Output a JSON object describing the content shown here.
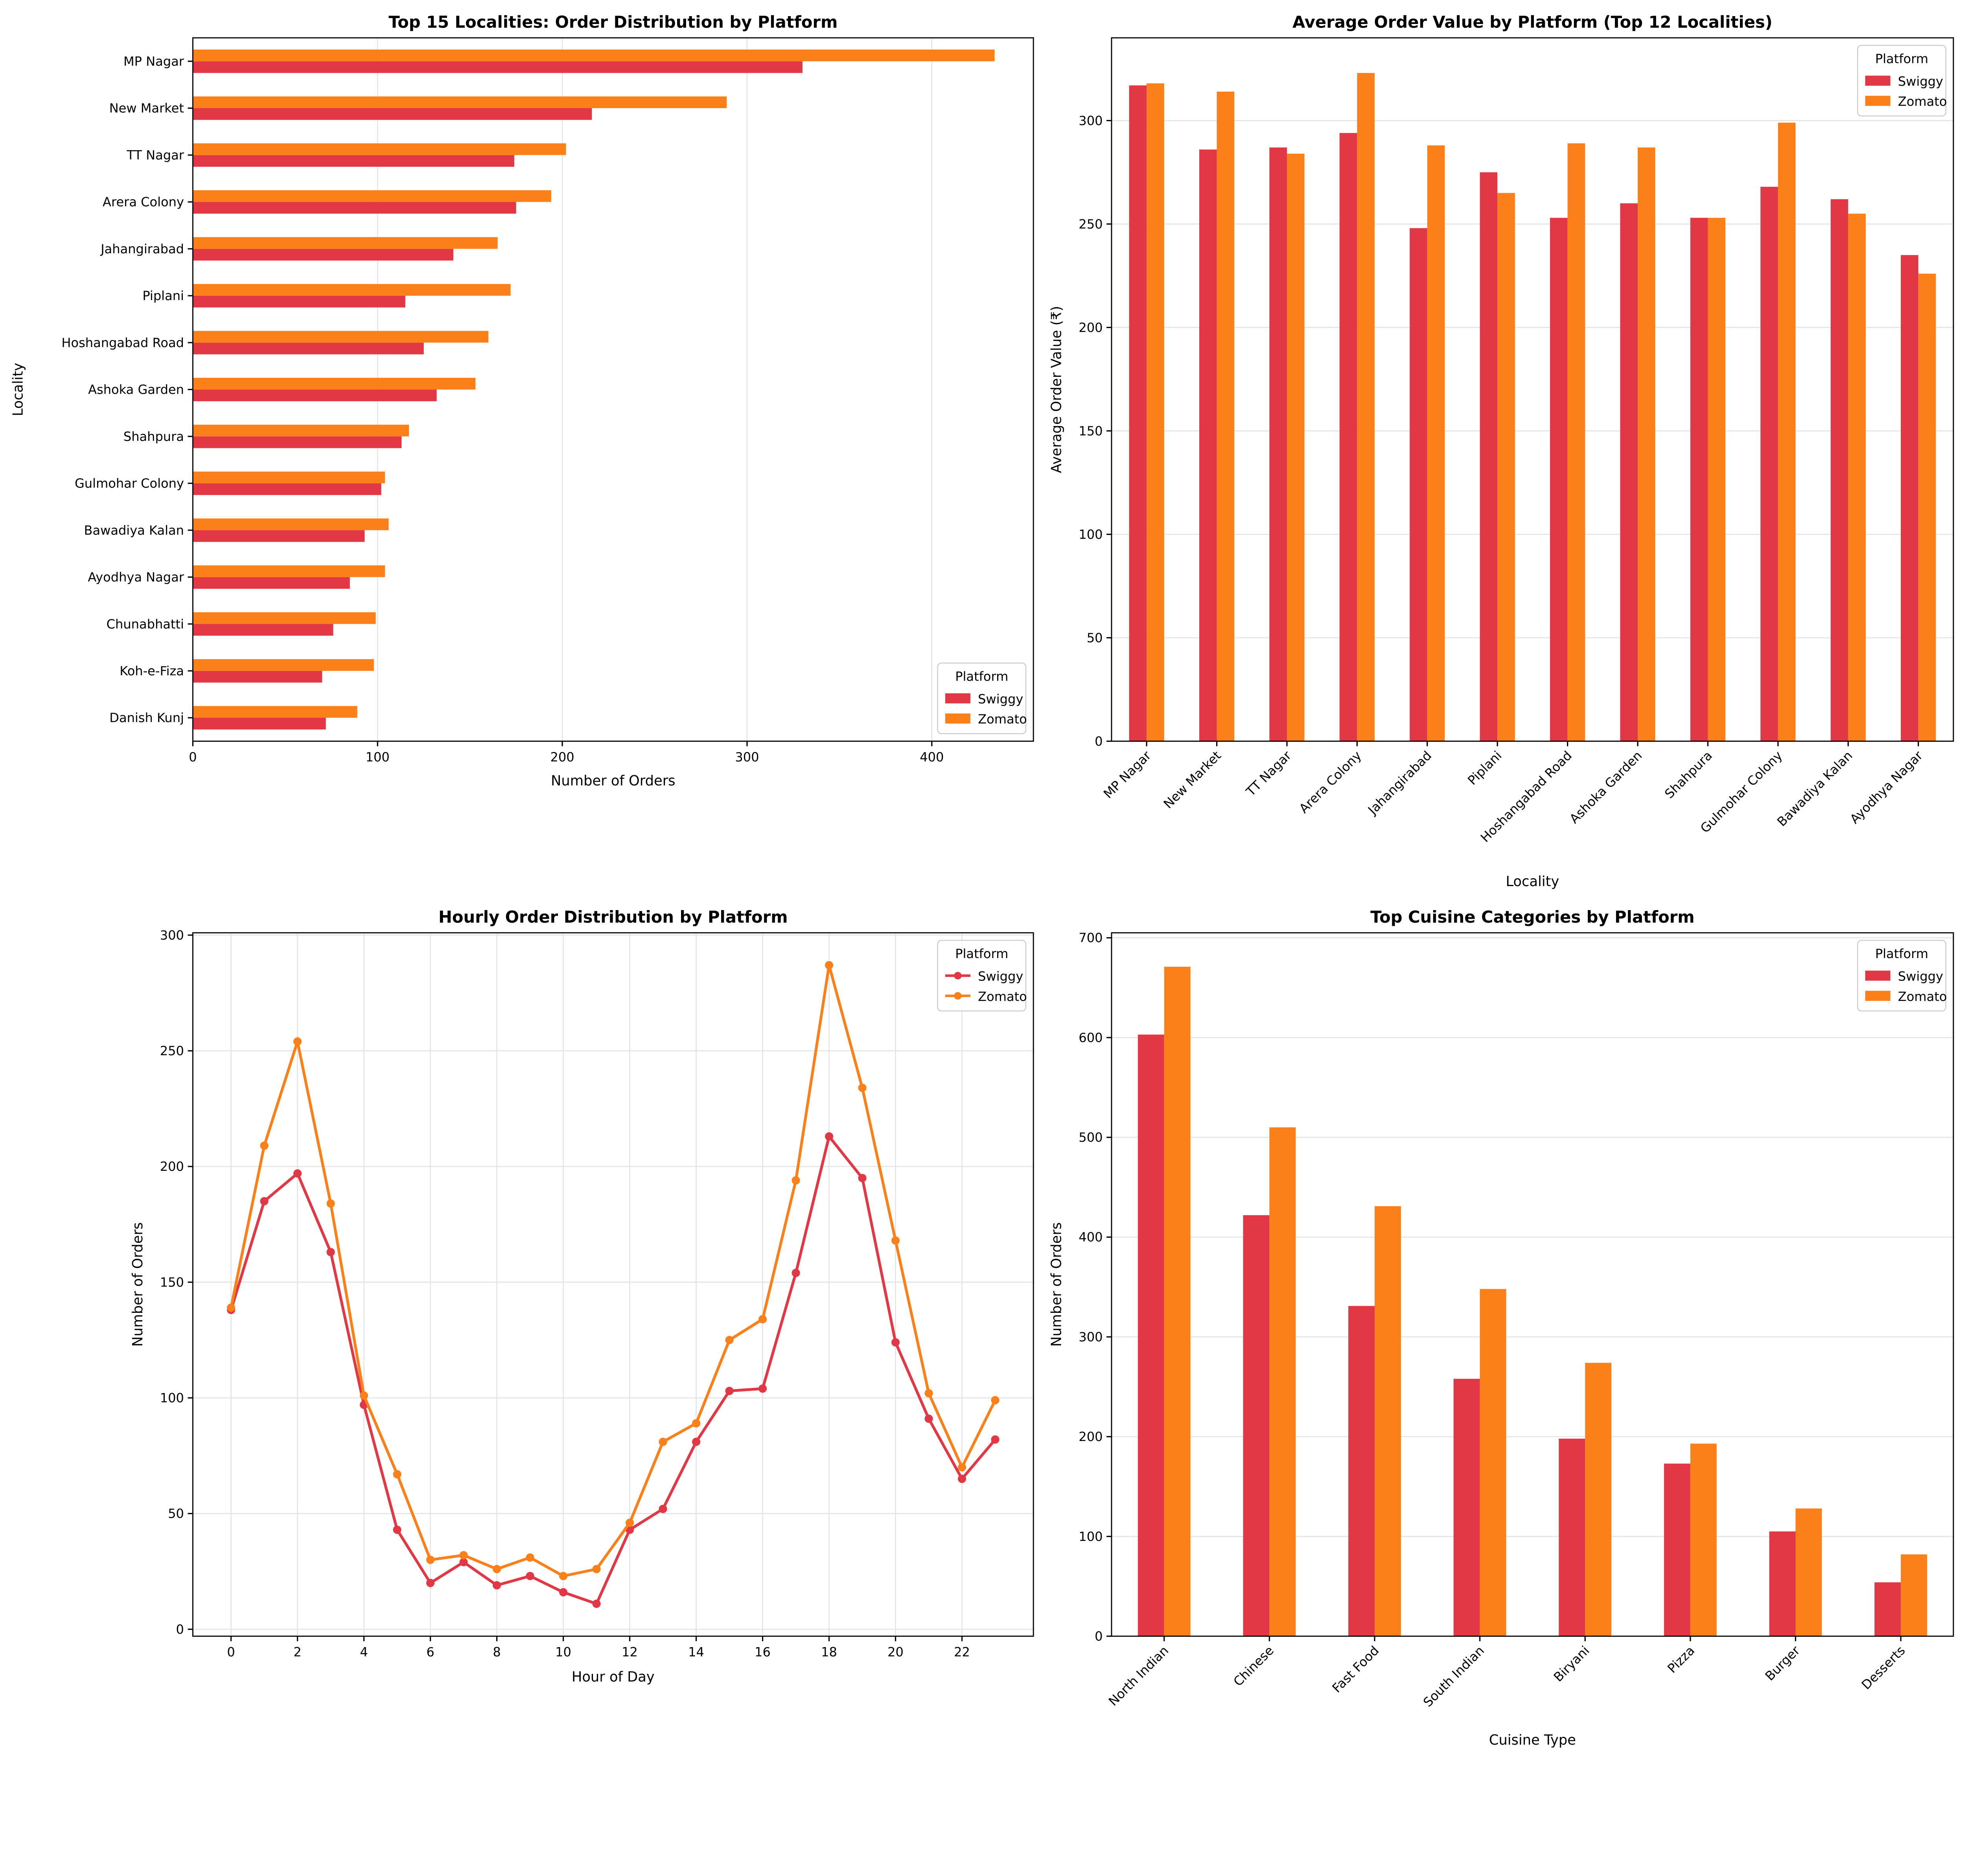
{
  "colors": {
    "Swiggy": "#e23744",
    "Zomato": "#fc8019"
  },
  "chart_data": [
    {
      "type": "bar",
      "orientation": "horizontal",
      "title": "Top 15 Localities: Order Distribution by Platform",
      "xlabel": "Number of Orders",
      "ylabel": "Locality",
      "legend_title": "Platform",
      "legend_placement": "lower-right",
      "grid": true,
      "xlim": [
        0,
        455
      ],
      "xticks": [
        0,
        100,
        200,
        300,
        400
      ],
      "categories": [
        "MP Nagar",
        "New Market",
        "TT Nagar",
        "Arera Colony",
        "Jahangirabad",
        "Piplani",
        "Hoshangabad Road",
        "Ashoka Garden",
        "Shahpura",
        "Gulmohar Colony",
        "Bawadiya Kalan",
        "Ayodhya Nagar",
        "Chunabhatti",
        "Koh-e-Fiza",
        "Danish Kunj"
      ],
      "series": [
        {
          "name": "Swiggy",
          "values": [
            330,
            216,
            174,
            175,
            141,
            115,
            125,
            132,
            113,
            102,
            93,
            85,
            76,
            70,
            72
          ]
        },
        {
          "name": "Zomato",
          "values": [
            434,
            289,
            202,
            194,
            165,
            172,
            160,
            153,
            117,
            104,
            106,
            104,
            99,
            98,
            89
          ]
        }
      ]
    },
    {
      "type": "bar",
      "title": "Average Order Value by Platform (Top 12 Localities)",
      "xlabel": "Locality",
      "ylabel": "Average Order Value (₹)",
      "legend_title": "Platform",
      "legend_placement": "top-right",
      "grid": true,
      "ylim": [
        0,
        340
      ],
      "yticks": [
        0,
        50,
        100,
        150,
        200,
        250,
        300
      ],
      "categories": [
        "MP Nagar",
        "New Market",
        "TT Nagar",
        "Arera Colony",
        "Jahangirabad",
        "Piplani",
        "Hoshangabad Road",
        "Ashoka Garden",
        "Shahpura",
        "Gulmohar Colony",
        "Bawadiya Kalan",
        "Ayodhya Nagar"
      ],
      "series": [
        {
          "name": "Swiggy",
          "values": [
            317,
            286,
            287,
            294,
            248,
            275,
            253,
            260,
            253,
            268,
            262,
            235
          ]
        },
        {
          "name": "Zomato",
          "values": [
            318,
            314,
            284,
            323,
            288,
            265,
            289,
            287,
            253,
            299,
            255,
            226
          ]
        }
      ]
    },
    {
      "type": "line",
      "title": "Hourly Order Distribution by Platform",
      "xlabel": "Hour of Day",
      "ylabel": "Number of Orders",
      "legend_title": "Platform",
      "legend_placement": "top-right",
      "grid": true,
      "xlim": [
        -1.15,
        24.15
      ],
      "ylim": [
        -3,
        301
      ],
      "xticks": [
        0,
        2,
        4,
        6,
        8,
        10,
        12,
        14,
        16,
        18,
        20,
        22
      ],
      "yticks": [
        0,
        50,
        100,
        150,
        200,
        250,
        300
      ],
      "x": [
        0,
        1,
        2,
        3,
        4,
        5,
        6,
        7,
        8,
        9,
        10,
        11,
        12,
        13,
        14,
        15,
        16,
        17,
        18,
        19,
        20,
        21,
        22,
        23
      ],
      "series": [
        {
          "name": "Swiggy",
          "values": [
            138,
            185,
            197,
            163,
            97,
            43,
            20,
            29,
            19,
            23,
            16,
            11,
            43,
            52,
            81,
            103,
            104,
            154,
            213,
            195,
            124,
            91,
            65,
            82
          ]
        },
        {
          "name": "Zomato",
          "values": [
            139,
            209,
            254,
            184,
            101,
            67,
            30,
            32,
            26,
            31,
            23,
            26,
            46,
            81,
            89,
            125,
            134,
            194,
            287,
            234,
            168,
            102,
            70,
            99
          ]
        }
      ]
    },
    {
      "type": "bar",
      "title": "Top Cuisine Categories by Platform",
      "xlabel": "Cuisine Type",
      "ylabel": "Number of Orders",
      "legend_title": "Platform",
      "legend_placement": "top-right",
      "grid": true,
      "ylim": [
        0,
        705
      ],
      "yticks": [
        0,
        100,
        200,
        300,
        400,
        500,
        600,
        700
      ],
      "categories": [
        "North Indian",
        "Chinese",
        "Fast Food",
        "South Indian",
        "Biryani",
        "Pizza",
        "Burger",
        "Desserts"
      ],
      "series": [
        {
          "name": "Swiggy",
          "values": [
            603,
            422,
            331,
            258,
            198,
            173,
            105,
            54
          ]
        },
        {
          "name": "Zomato",
          "values": [
            671,
            510,
            431,
            348,
            274,
            193,
            128,
            82
          ]
        }
      ]
    }
  ]
}
